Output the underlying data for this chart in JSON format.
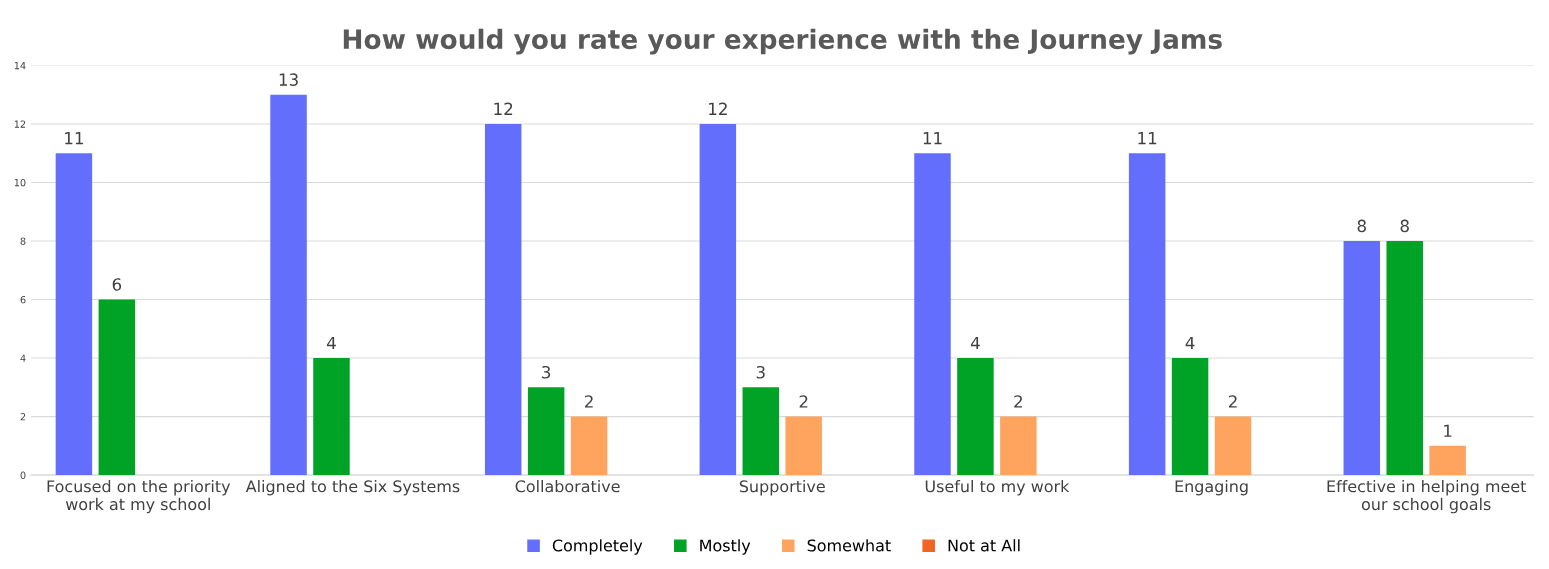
{
  "chart_data": {
    "type": "bar",
    "title": "How would you rate your experience with the Journey Jams",
    "categories": [
      "Focused on the priority work at my school",
      "Aligned to the Six Systems",
      "Collaborative",
      "Supportive",
      "Useful to my work",
      "Engaging",
      "Effective in helping meet our school goals"
    ],
    "series": [
      {
        "name": "Completely",
        "color": "#646efc",
        "values": [
          11,
          13,
          12,
          12,
          11,
          11,
          8
        ]
      },
      {
        "name": "Mostly",
        "color": "#00a326",
        "values": [
          6,
          4,
          3,
          3,
          4,
          4,
          8
        ]
      },
      {
        "name": "Somewhat",
        "color": "#ffa45e",
        "values": [
          null,
          null,
          2,
          2,
          2,
          2,
          1
        ]
      },
      {
        "name": "Not at All",
        "color": "#f06523",
        "values": [
          null,
          null,
          null,
          null,
          null,
          null,
          null
        ]
      }
    ],
    "ylim": [
      0,
      14
    ],
    "yticks": [
      0,
      2,
      4,
      6,
      8,
      10,
      12,
      14
    ],
    "grid": "y",
    "legend": "bottom",
    "data_labels": true
  }
}
